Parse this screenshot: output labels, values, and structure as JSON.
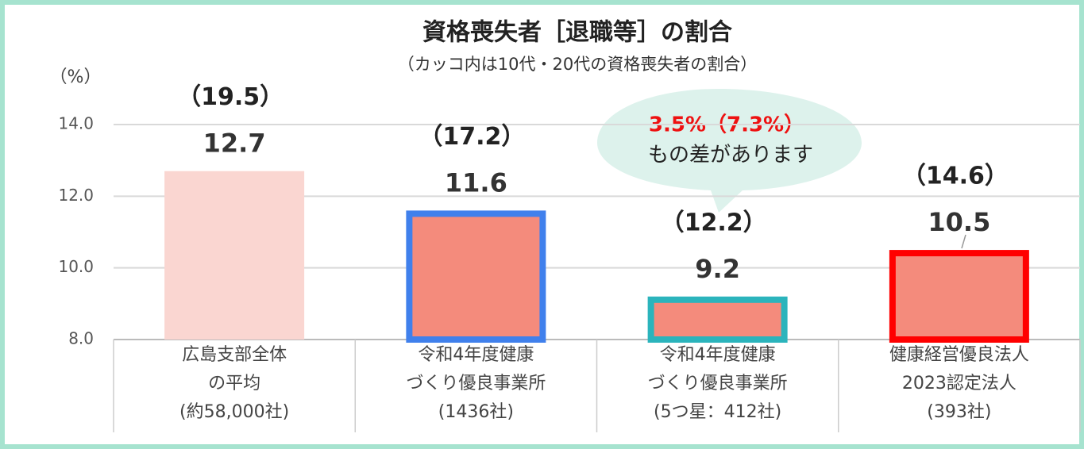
{
  "chart_data": {
    "type": "bar",
    "title": "資格喪失者［退職等］の割合",
    "subtitle": "（カッコ内は10代・20代の資格喪失者の割合）",
    "y_unit": "（%）",
    "categories": [
      "広島支部全体\nの平均\n(約58,000社)",
      "令和4年度健康\nづくり優良事業所\n(1436社)",
      "令和4年度健康\nづくり優良事業所\n(5つ星：412社)",
      "健康経営優良法人\n2023認定法人\n(393社)"
    ],
    "values": [
      12.7,
      11.6,
      9.2,
      10.5
    ],
    "youth_values": [
      19.5,
      17.2,
      12.2,
      14.6
    ],
    "youth_value_labels": [
      "（19.5）",
      "（17.2）",
      "（12.2）",
      "（14.6）"
    ],
    "colors": [
      "#fad6d1",
      "#f48b7c",
      "#f48b7c",
      "#f48b7c"
    ],
    "border_colors": [
      null,
      "#4080ec",
      "#2bb4bc",
      "#ff0000"
    ],
    "ylim": [
      8,
      14
    ],
    "yticks": [
      {
        "value": 8,
        "label": "8.0"
      },
      {
        "value": 10,
        "label": "10.0"
      },
      {
        "value": 12,
        "label": "12.0"
      },
      {
        "value": 14,
        "label": "14.0"
      }
    ],
    "grid": true,
    "annotations": [
      "3.5%（7.3%）",
      "もの差があります"
    ]
  }
}
